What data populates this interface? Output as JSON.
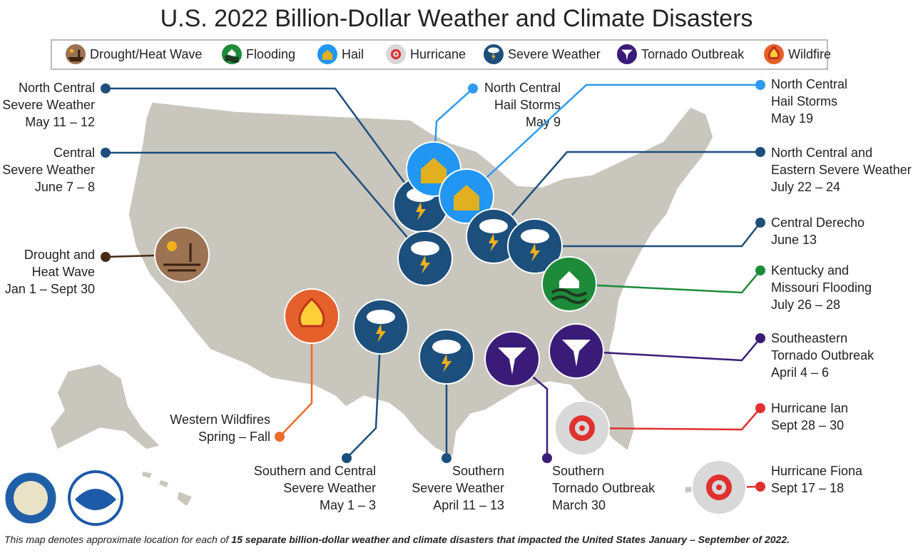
{
  "title": "U.S. 2022 Billion-Dollar Weather and Climate Disasters",
  "legend": [
    "Drought/Heat Wave",
    "Flooding",
    "Hail",
    "Hurricane",
    "Severe Weather",
    "Tornado Outbreak",
    "Wildfire"
  ],
  "events": [
    {
      "lines": [
        "North Central",
        "Severe Weather",
        "May 11 – 12"
      ]
    },
    {
      "lines": [
        "Central",
        "Severe Weather",
        "June 7 – 8"
      ]
    },
    {
      "lines": [
        "Drought and",
        "Heat Wave",
        "Jan 1 – Sept 30"
      ]
    },
    {
      "lines": [
        "North Central",
        "Hail Storms",
        "May 9"
      ]
    },
    {
      "lines": [
        "North Central",
        "Hail Storms",
        "May 19"
      ]
    },
    {
      "lines": [
        "North Central and",
        "Eastern Severe Weather",
        "July 22 – 24"
      ]
    },
    {
      "lines": [
        "Central Derecho",
        "June 13"
      ]
    },
    {
      "lines": [
        "Kentucky and",
        "Missouri Flooding",
        "July 26 – 28"
      ]
    },
    {
      "lines": [
        "Southeastern",
        "Tornado Outbreak",
        "April 4 – 6"
      ]
    },
    {
      "lines": [
        "Hurricane Ian",
        "Sept 28 – 30"
      ]
    },
    {
      "lines": [
        "Hurricane Fiona",
        "Sept 17 – 18"
      ]
    },
    {
      "lines": [
        "Southern",
        "Tornado Outbreak",
        "March 30"
      ]
    },
    {
      "lines": [
        "Southern",
        "Severe Weather",
        "April 11 – 13"
      ]
    },
    {
      "lines": [
        "Southern and Central",
        "Severe Weather",
        "May 1 – 3"
      ]
    },
    {
      "lines": [
        "Western Wildfires",
        "Spring – Fall"
      ]
    }
  ],
  "footer": {
    "text": "This map denotes approximate location for each of",
    "emphasis": "15 separate billion-dollar weather and climate disasters that impacted the United States January – September of 2022."
  }
}
